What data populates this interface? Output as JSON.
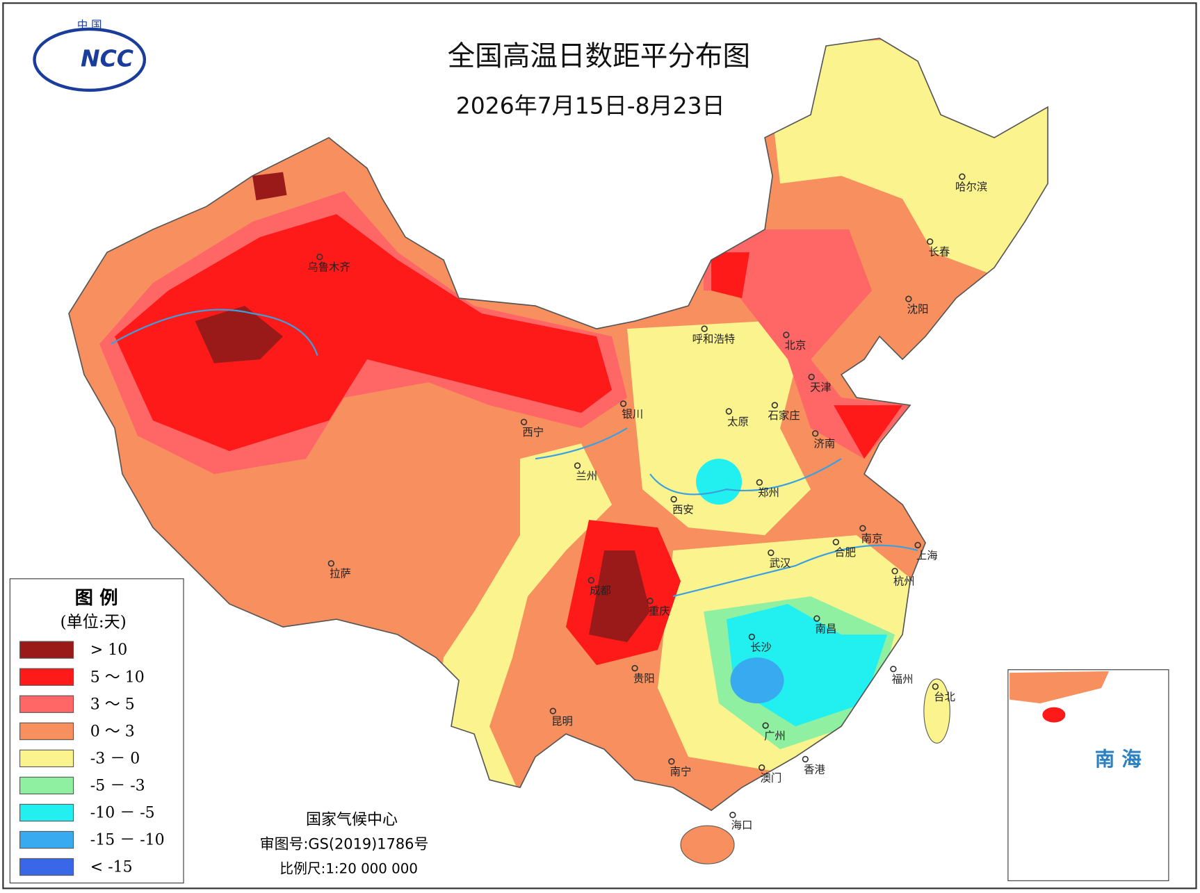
{
  "header": {
    "title": "全国高温日数距平分布图",
    "subtitle": "2026年7月15日-8月23日",
    "logo_top": "中 国",
    "logo_text": "NCC"
  },
  "legend": {
    "title": "图 例",
    "unit": "(单位:天)",
    "items": [
      {
        "label": "> 10",
        "color": "#9a1a1a"
      },
      {
        "label": "5 ～ 10",
        "color": "#ff1a1a"
      },
      {
        "label": "3 ～ 5",
        "color": "#ff6666"
      },
      {
        "label": "0 ～ 3",
        "color": "#f78f5e"
      },
      {
        "label": "-3 － 0",
        "color": "#fbf48e"
      },
      {
        "label": "-5 － -3",
        "color": "#8ef0a0"
      },
      {
        "label": "-10 － -5",
        "color": "#22f0f0"
      },
      {
        "label": "-15 － -10",
        "color": "#38aaf0"
      },
      {
        "label": "< -15",
        "color": "#3a66e8"
      }
    ]
  },
  "cities": [
    {
      "name": "乌鲁木齐"
    },
    {
      "name": "呼和浩特"
    },
    {
      "name": "北京"
    },
    {
      "name": "天津"
    },
    {
      "name": "哈尔滨"
    },
    {
      "name": "长春"
    },
    {
      "name": "沈阳"
    },
    {
      "name": "银川"
    },
    {
      "name": "太原"
    },
    {
      "name": "石家庄"
    },
    {
      "name": "济南"
    },
    {
      "name": "西宁"
    },
    {
      "name": "兰州"
    },
    {
      "name": "郑州"
    },
    {
      "name": "西安"
    },
    {
      "name": "南京"
    },
    {
      "name": "合肥"
    },
    {
      "name": "上海"
    },
    {
      "name": "武汉"
    },
    {
      "name": "杭州"
    },
    {
      "name": "拉萨"
    },
    {
      "name": "成都"
    },
    {
      "name": "重庆"
    },
    {
      "name": "长沙"
    },
    {
      "name": "南昌"
    },
    {
      "name": "福州"
    },
    {
      "name": "台北"
    },
    {
      "name": "贵阳"
    },
    {
      "name": "昆明"
    },
    {
      "name": "广州"
    },
    {
      "name": "南宁"
    },
    {
      "name": "香港"
    },
    {
      "name": "澳门"
    },
    {
      "name": "海口"
    }
  ],
  "inset": {
    "label": "南 海"
  },
  "footer": {
    "org": "国家气候中心",
    "approval": "审图号:GS(2019)1786号",
    "scale": "比例尺:1:20 000 000"
  }
}
